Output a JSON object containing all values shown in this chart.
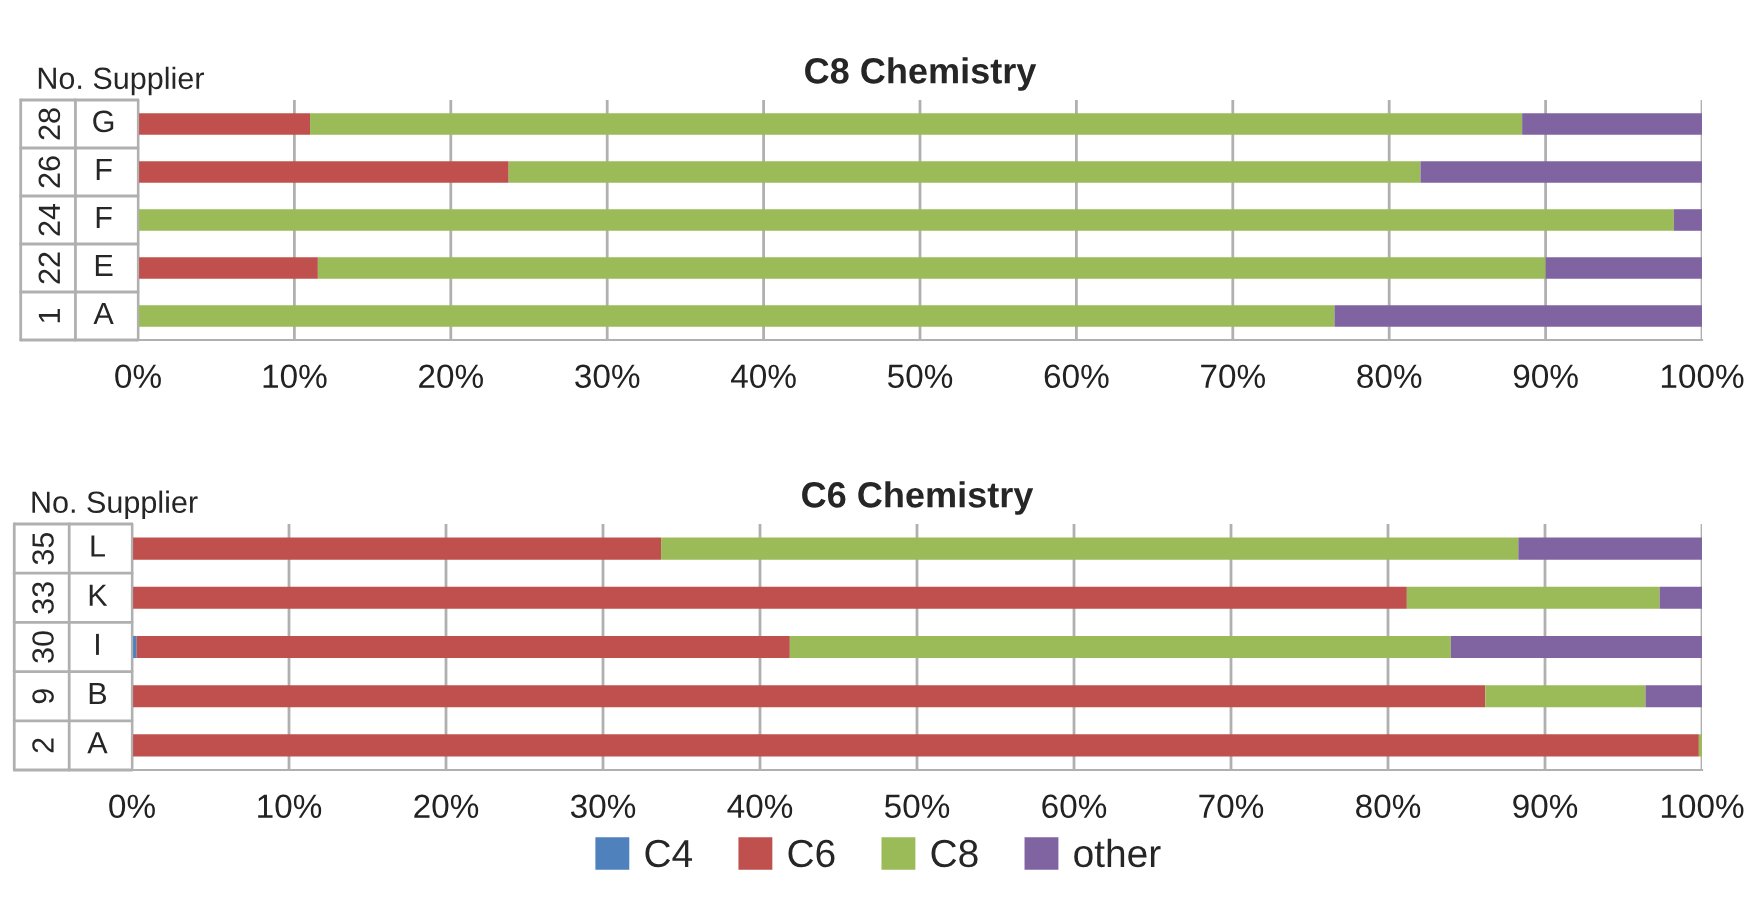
{
  "chart_data": [
    {
      "type": "bar",
      "title": "C8 Chemistry",
      "orientation": "horizontal",
      "stacked": true,
      "categories": [
        "G",
        "F",
        "F",
        "E",
        "A"
      ],
      "annotations": [
        "No. Supplier",
        "28",
        "26",
        "24",
        "22",
        "1"
      ],
      "series": [
        {
          "color": "#4f81bd",
          "values": [
            0,
            0,
            0,
            0,
            0
          ]
        },
        {
          "color": "#c0504d",
          "values": [
            11,
            23.7,
            0,
            11.5,
            0
          ]
        },
        {
          "color": "#9bbb59",
          "values": [
            77.5,
            58.3,
            98.2,
            78.5,
            76.5
          ]
        },
        {
          "color": "#8064a2",
          "values": [
            11.5,
            18,
            1.8,
            10,
            23.5
          ]
        }
      ],
      "xlim": [
        0,
        100
      ],
      "xticks": [
        {
          "value": 0,
          "label": "0%"
        },
        {
          "value": 10,
          "label": "10%"
        },
        {
          "value": 20,
          "label": "20%"
        },
        {
          "value": 30,
          "label": "30%"
        },
        {
          "value": 40,
          "label": "40%"
        },
        {
          "value": 50,
          "label": "50%"
        },
        {
          "value": 60,
          "label": "60%"
        },
        {
          "value": 70,
          "label": "70%"
        },
        {
          "value": 80,
          "label": "80%"
        },
        {
          "value": 90,
          "label": "90%"
        },
        {
          "value": 100,
          "label": "100%"
        }
      ],
      "grid": "x"
    },
    {
      "type": "bar",
      "title": "C6 Chemistry",
      "orientation": "horizontal",
      "stacked": true,
      "categories": [
        "L",
        "K",
        "I",
        "B",
        "A"
      ],
      "annotations": [
        "No. Supplier",
        "35",
        "33",
        "30",
        "9",
        "2"
      ],
      "series": [
        {
          "name": "C4",
          "color": "#4f81bd",
          "values": [
            0,
            0,
            0.3,
            0,
            0
          ]
        },
        {
          "name": "C6",
          "color": "#c0504d",
          "values": [
            33.7,
            81.2,
            41.6,
            86.2,
            99.8
          ]
        },
        {
          "name": "C8",
          "color": "#9bbb59",
          "values": [
            54.6,
            16.1,
            42.1,
            10.2,
            0.2
          ]
        },
        {
          "name": "other",
          "color": "#8064a2",
          "values": [
            11.7,
            2.7,
            16,
            3.6,
            0
          ]
        }
      ],
      "xlim": [
        0,
        100
      ],
      "xticks": [
        {
          "value": 0,
          "label": "0%"
        },
        {
          "value": 10,
          "label": "10%"
        },
        {
          "value": 20,
          "label": "20%"
        },
        {
          "value": 30,
          "label": "30%"
        },
        {
          "value": 40,
          "label": "40%"
        },
        {
          "value": 50,
          "label": "50%"
        },
        {
          "value": 60,
          "label": "60%"
        },
        {
          "value": 70,
          "label": "70%"
        },
        {
          "value": 80,
          "label": "80%"
        },
        {
          "value": 90,
          "label": "90%"
        },
        {
          "value": 100,
          "label": "100%"
        }
      ],
      "grid": "x",
      "legend": "bottom"
    }
  ]
}
